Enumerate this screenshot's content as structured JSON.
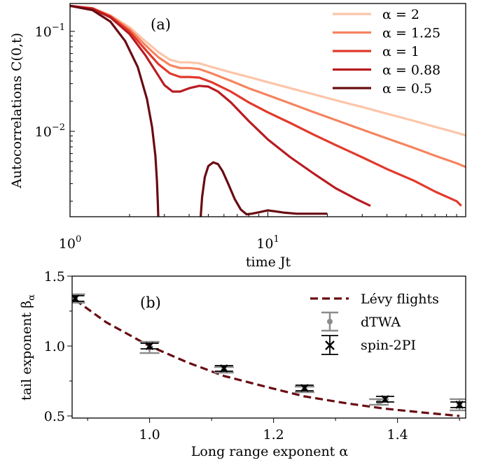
{
  "chart_data": [
    {
      "panel_label": "(a)",
      "type": "line",
      "xscale": "log",
      "yscale": "log",
      "xlabel": "time Jt",
      "ylabel": "Autocorrelations C(0,t)",
      "xlim": [
        1,
        100
      ],
      "ylim": [
        0.0014,
        0.19
      ],
      "xticks": [
        {
          "value": 1,
          "base": "10",
          "exp": "0"
        },
        {
          "value": 10,
          "base": "10",
          "exp": "1"
        }
      ],
      "yticks": [
        {
          "value": 0.1,
          "base": "10",
          "exp": "−1"
        },
        {
          "value": 0.01,
          "base": "10",
          "exp": "−2"
        }
      ],
      "legend_position": "top-right",
      "series": [
        {
          "name": "α = 2",
          "color": "#fcc5a9",
          "x": [
            1,
            1.3,
            1.6,
            2.0,
            2.4,
            2.8,
            3.2,
            3.6,
            4.0,
            4.5,
            5.2,
            6.5,
            8,
            10,
            13,
            17,
            22,
            30,
            40,
            55,
            70,
            90,
            100
          ],
          "y": [
            0.18,
            0.17,
            0.145,
            0.11,
            0.08,
            0.062,
            0.052,
            0.049,
            0.049,
            0.048,
            0.044,
            0.039,
            0.035,
            0.031,
            0.027,
            0.0235,
            0.0205,
            0.0175,
            0.015,
            0.0127,
            0.0111,
            0.0097,
            0.0091
          ]
        },
        {
          "name": "α = 1.25",
          "color": "#f5845f",
          "x": [
            1,
            1.3,
            1.6,
            2.0,
            2.4,
            2.8,
            3.2,
            3.6,
            4.0,
            4.5,
            5.2,
            6.5,
            8,
            10,
            13,
            17,
            22,
            30,
            40,
            55,
            70,
            90,
            100
          ],
          "y": [
            0.18,
            0.17,
            0.143,
            0.105,
            0.073,
            0.055,
            0.046,
            0.043,
            0.043,
            0.042,
            0.038,
            0.032,
            0.027,
            0.023,
            0.019,
            0.0156,
            0.013,
            0.0104,
            0.0085,
            0.0068,
            0.0057,
            0.0048,
            0.0044
          ]
        },
        {
          "name": "α = 1",
          "color": "#e2392c",
          "x": [
            1,
            1.3,
            1.6,
            2.0,
            2.4,
            2.8,
            3.2,
            3.6,
            4.0,
            4.5,
            5.2,
            6.5,
            8,
            10,
            13,
            17,
            22,
            30,
            40,
            55,
            70,
            90,
            95
          ],
          "y": [
            0.18,
            0.17,
            0.141,
            0.1,
            0.066,
            0.047,
            0.038,
            0.035,
            0.035,
            0.0345,
            0.031,
            0.025,
            0.0195,
            0.0155,
            0.0121,
            0.0093,
            0.0073,
            0.0055,
            0.0042,
            0.0032,
            0.0025,
            0.002,
            0.0018
          ]
        },
        {
          "name": "α = 0.88",
          "color": "#b81b20",
          "x": [
            1,
            1.3,
            1.6,
            2.0,
            2.4,
            2.8,
            3.0,
            3.3,
            3.6,
            4.0,
            4.5,
            5.0,
            5.6,
            6.5,
            8,
            10,
            13,
            17,
            22,
            28,
            33
          ],
          "y": [
            0.18,
            0.168,
            0.138,
            0.094,
            0.058,
            0.036,
            0.029,
            0.025,
            0.025,
            0.027,
            0.0285,
            0.028,
            0.025,
            0.0195,
            0.0127,
            0.0083,
            0.0055,
            0.0038,
            0.0027,
            0.0021,
            0.0018
          ]
        },
        {
          "name": "α = 0.5",
          "color": "#690c12",
          "segments": [
            {
              "x": [
                1,
                1.3,
                1.6,
                1.9,
                2.2,
                2.45,
                2.6,
                2.7,
                2.75,
                2.78,
                2.8
              ],
              "y": [
                0.18,
                0.163,
                0.125,
                0.08,
                0.044,
                0.021,
                0.011,
                0.0057,
                0.0032,
                0.0019,
                0.0012
              ]
            },
            {
              "x": [
                4.55,
                4.65,
                4.8,
                5.0,
                5.3,
                5.6,
                5.9,
                6.3,
                6.8,
                7.3,
                7.8,
                8.3,
                9.0,
                10,
                11,
                12,
                14,
                16,
                18,
                20
              ],
              "y": [
                0.0012,
                0.0022,
                0.0035,
                0.0045,
                0.0049,
                0.0047,
                0.004,
                0.003,
                0.0021,
                0.00165,
                0.00148,
                0.0015,
                0.00155,
                0.00162,
                0.00158,
                0.00154,
                0.0015,
                0.0015,
                0.0015,
                0.0015
              ]
            }
          ]
        }
      ]
    },
    {
      "panel_label": "(b)",
      "type": "scatter",
      "xlabel": "Long range exponent α",
      "ylabel": "tail exponent β",
      "ylabel_subscript": "α",
      "xlim": [
        0.875,
        1.51
      ],
      "ylim": [
        0.485,
        1.5
      ],
      "xticks": [
        1.0,
        1.2,
        1.4
      ],
      "xtick_labels": [
        "1.0",
        "1.2",
        "1.4"
      ],
      "yticks": [
        0.5,
        1.0,
        1.5
      ],
      "ytick_labels": [
        "0.5",
        "1.0",
        "1.5"
      ],
      "legend_position": "top-right",
      "series": [
        {
          "name": "Lévy flights",
          "style": "dashed-line",
          "color": "#690c12",
          "x": [
            0.88,
            0.93,
            1.0,
            1.06,
            1.12,
            1.19,
            1.25,
            1.32,
            1.38,
            1.44,
            1.5
          ],
          "y": [
            1.33,
            1.17,
            1.0,
            0.885,
            0.786,
            0.706,
            0.64,
            0.589,
            0.552,
            0.525,
            0.5
          ]
        },
        {
          "name": "dTWA",
          "style": "errorbar-dot",
          "color": "#8c8c8c",
          "x": [
            0.88,
            1.0,
            1.12,
            1.25,
            1.37,
            1.5
          ],
          "y": [
            1.34,
            0.99,
            0.83,
            0.69,
            0.6,
            0.58
          ],
          "err": [
            0.03,
            0.04,
            0.02,
            0.02,
            0.02,
            0.04
          ]
        },
        {
          "name": "spin-2PI",
          "style": "errorbar-x",
          "color": "#000000",
          "x": [
            0.88,
            1.0,
            1.12,
            1.25,
            1.38,
            1.5
          ],
          "y": [
            1.34,
            1.0,
            0.84,
            0.7,
            0.62,
            0.58
          ],
          "err": [
            0.02,
            0.02,
            0.02,
            0.02,
            0.02,
            0.02
          ]
        }
      ]
    }
  ]
}
